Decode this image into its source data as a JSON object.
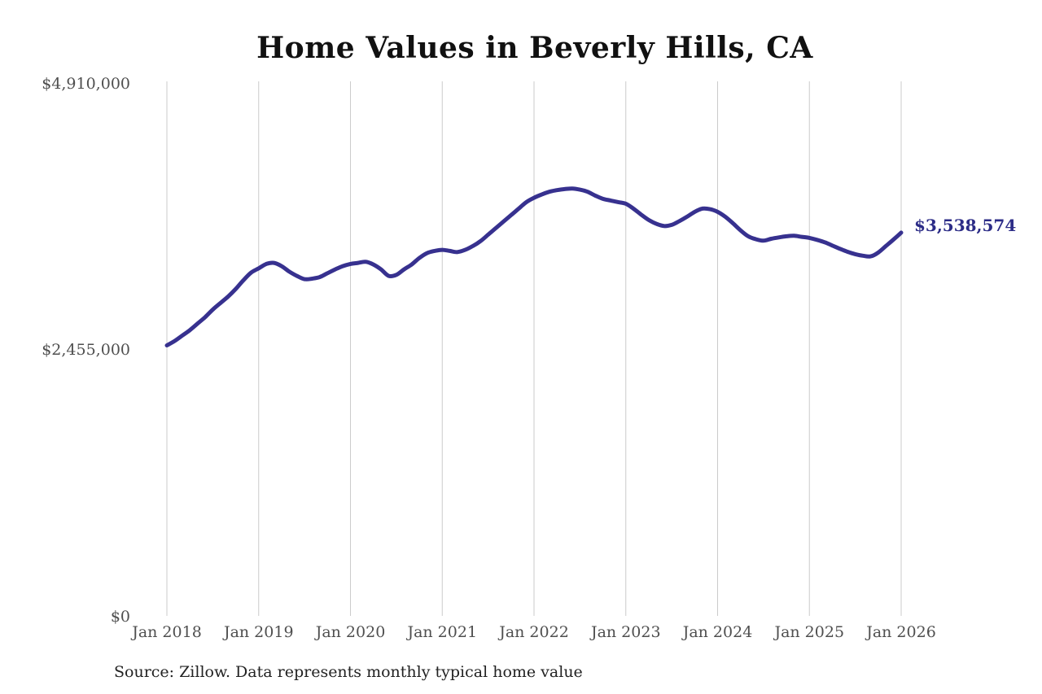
{
  "title": "Home Values in Beverly Hills, CA",
  "source_note": "Source: Zillow. Data represents monthly typical home value",
  "colors": {
    "line": "#37318f",
    "latest_value_label": "#2c2c87",
    "gridline": "#cbcbcb",
    "axis_text": "#4f4f4f",
    "title_text": "#111111",
    "background": "#ffffff"
  },
  "chart_data": {
    "type": "line",
    "title": "Home Values in Beverly Hills, CA",
    "xlabel": "",
    "ylabel": "",
    "x_unit": "month",
    "x_start": "2018-01",
    "x_end": "2026-01",
    "x_tick_labels": [
      "Jan 2018",
      "Jan 2019",
      "Jan 2020",
      "Jan 2021",
      "Jan 2022",
      "Jan 2023",
      "Jan 2024",
      "Jan 2025",
      "Jan 2026"
    ],
    "y_tick_labels": [
      "$0",
      "$2,455,000",
      "$4,910,000"
    ],
    "y_ticks": [
      0,
      2455000,
      4910000
    ],
    "ylim": [
      0,
      4910000
    ],
    "grid": "vertical-yearly-only",
    "legend": "none",
    "latest_value": 3538574,
    "latest_value_label": "$3,538,574",
    "series": [
      {
        "name": "Monthly typical home value",
        "values": [
          2500000,
          2540000,
          2590000,
          2640000,
          2700000,
          2760000,
          2830000,
          2890000,
          2950000,
          3020000,
          3100000,
          3170000,
          3210000,
          3250000,
          3260000,
          3230000,
          3180000,
          3140000,
          3110000,
          3115000,
          3130000,
          3165000,
          3200000,
          3230000,
          3250000,
          3260000,
          3270000,
          3245000,
          3200000,
          3140000,
          3150000,
          3200000,
          3245000,
          3305000,
          3350000,
          3370000,
          3380000,
          3370000,
          3360000,
          3380000,
          3415000,
          3460000,
          3520000,
          3580000,
          3640000,
          3700000,
          3760000,
          3820000,
          3860000,
          3890000,
          3915000,
          3930000,
          3940000,
          3945000,
          3935000,
          3915000,
          3880000,
          3850000,
          3835000,
          3820000,
          3805000,
          3760000,
          3705000,
          3655000,
          3620000,
          3600000,
          3610000,
          3645000,
          3685000,
          3730000,
          3760000,
          3755000,
          3730000,
          3685000,
          3625000,
          3560000,
          3505000,
          3478000,
          3465000,
          3482000,
          3495000,
          3505000,
          3510000,
          3500000,
          3490000,
          3472000,
          3450000,
          3420000,
          3390000,
          3362000,
          3340000,
          3326000,
          3320000,
          3355000,
          3415000,
          3475000,
          3538574
        ]
      }
    ]
  }
}
